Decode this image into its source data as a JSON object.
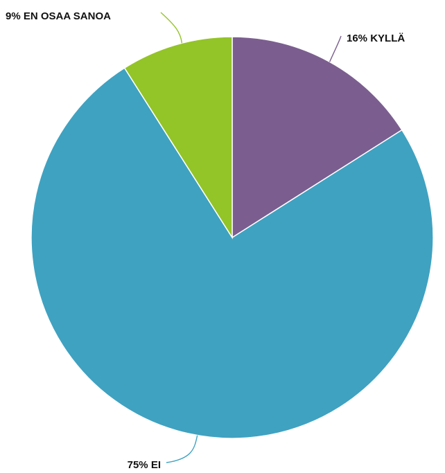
{
  "chart_data": {
    "type": "pie",
    "title": "",
    "start_angle_deg": 0,
    "direction": "clockwise",
    "legend": "none",
    "slices": [
      {
        "label": "KYLLÄ",
        "value": 16,
        "display": "16% KYLLÄ",
        "color": "#7b5e8f"
      },
      {
        "label": "EI",
        "value": 75,
        "display": "75% EI",
        "color": "#3fa2c1"
      },
      {
        "label": "EN OSAA SANOA",
        "value": 9,
        "display": "9% EN OSAA SANOA",
        "color": "#93c428"
      }
    ]
  }
}
